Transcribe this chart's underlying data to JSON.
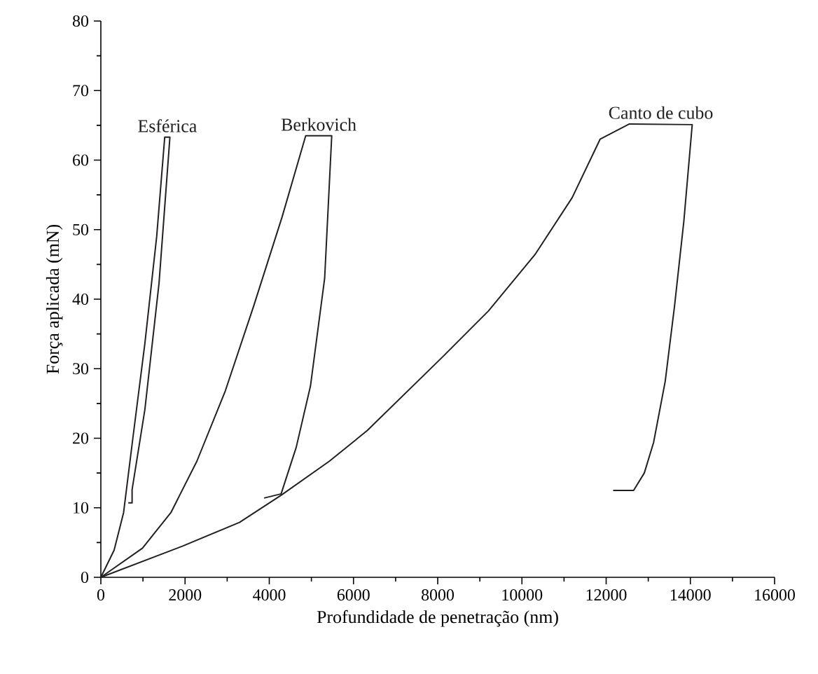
{
  "chart_data": {
    "type": "line",
    "xlabel": "Profundidade de penetração (nm)",
    "ylabel": "Força aplicada (mN)",
    "xlim": [
      0,
      16000
    ],
    "ylim": [
      0,
      80
    ],
    "xticks": [
      0,
      2000,
      4000,
      6000,
      8000,
      10000,
      12000,
      14000,
      16000
    ],
    "yticks": [
      0,
      10,
      20,
      30,
      40,
      50,
      60,
      70,
      80
    ],
    "grid": false,
    "legend": false,
    "marker": "none",
    "line_style": "solid",
    "series": [
      {
        "name": "Esférica",
        "color": "#231f20",
        "x": [
          0,
          315,
          540,
          760,
          1045,
          1326,
          1517,
          1640,
          1382,
          1045,
          742,
          742,
          652
        ],
        "values": [
          0,
          3.9,
          9.3,
          20,
          33.6,
          49,
          63.3,
          63.3,
          42.3,
          24.1,
          12.6,
          10.7,
          10.7
        ]
      },
      {
        "name": "Berkovich",
        "color": "#231f20",
        "x": [
          0,
          989,
          1663,
          2281,
          2955,
          3629,
          4303,
          4865,
          5483,
          5315,
          4978,
          4640,
          4281,
          3876
        ],
        "values": [
          0,
          4.2,
          9.3,
          16.7,
          26.8,
          39,
          51.8,
          63.5,
          63.5,
          43,
          27.5,
          18.7,
          12,
          11.4
        ]
      },
      {
        "name": "Canto de cubo",
        "color": "#231f20",
        "x": [
          0,
          1944,
          3292,
          4281,
          5427,
          6326,
          8099,
          9204,
          10309,
          11193,
          11856,
          12552,
          14044,
          13845,
          13624,
          13403,
          13127,
          12906,
          12652,
          12166
        ],
        "values": [
          0,
          4.5,
          7.9,
          11.8,
          16.7,
          21.1,
          31.6,
          38.3,
          46.4,
          54.6,
          63,
          65.2,
          65.1,
          51.2,
          39,
          28.2,
          19.4,
          15,
          12.5,
          12.5
        ]
      }
    ]
  }
}
